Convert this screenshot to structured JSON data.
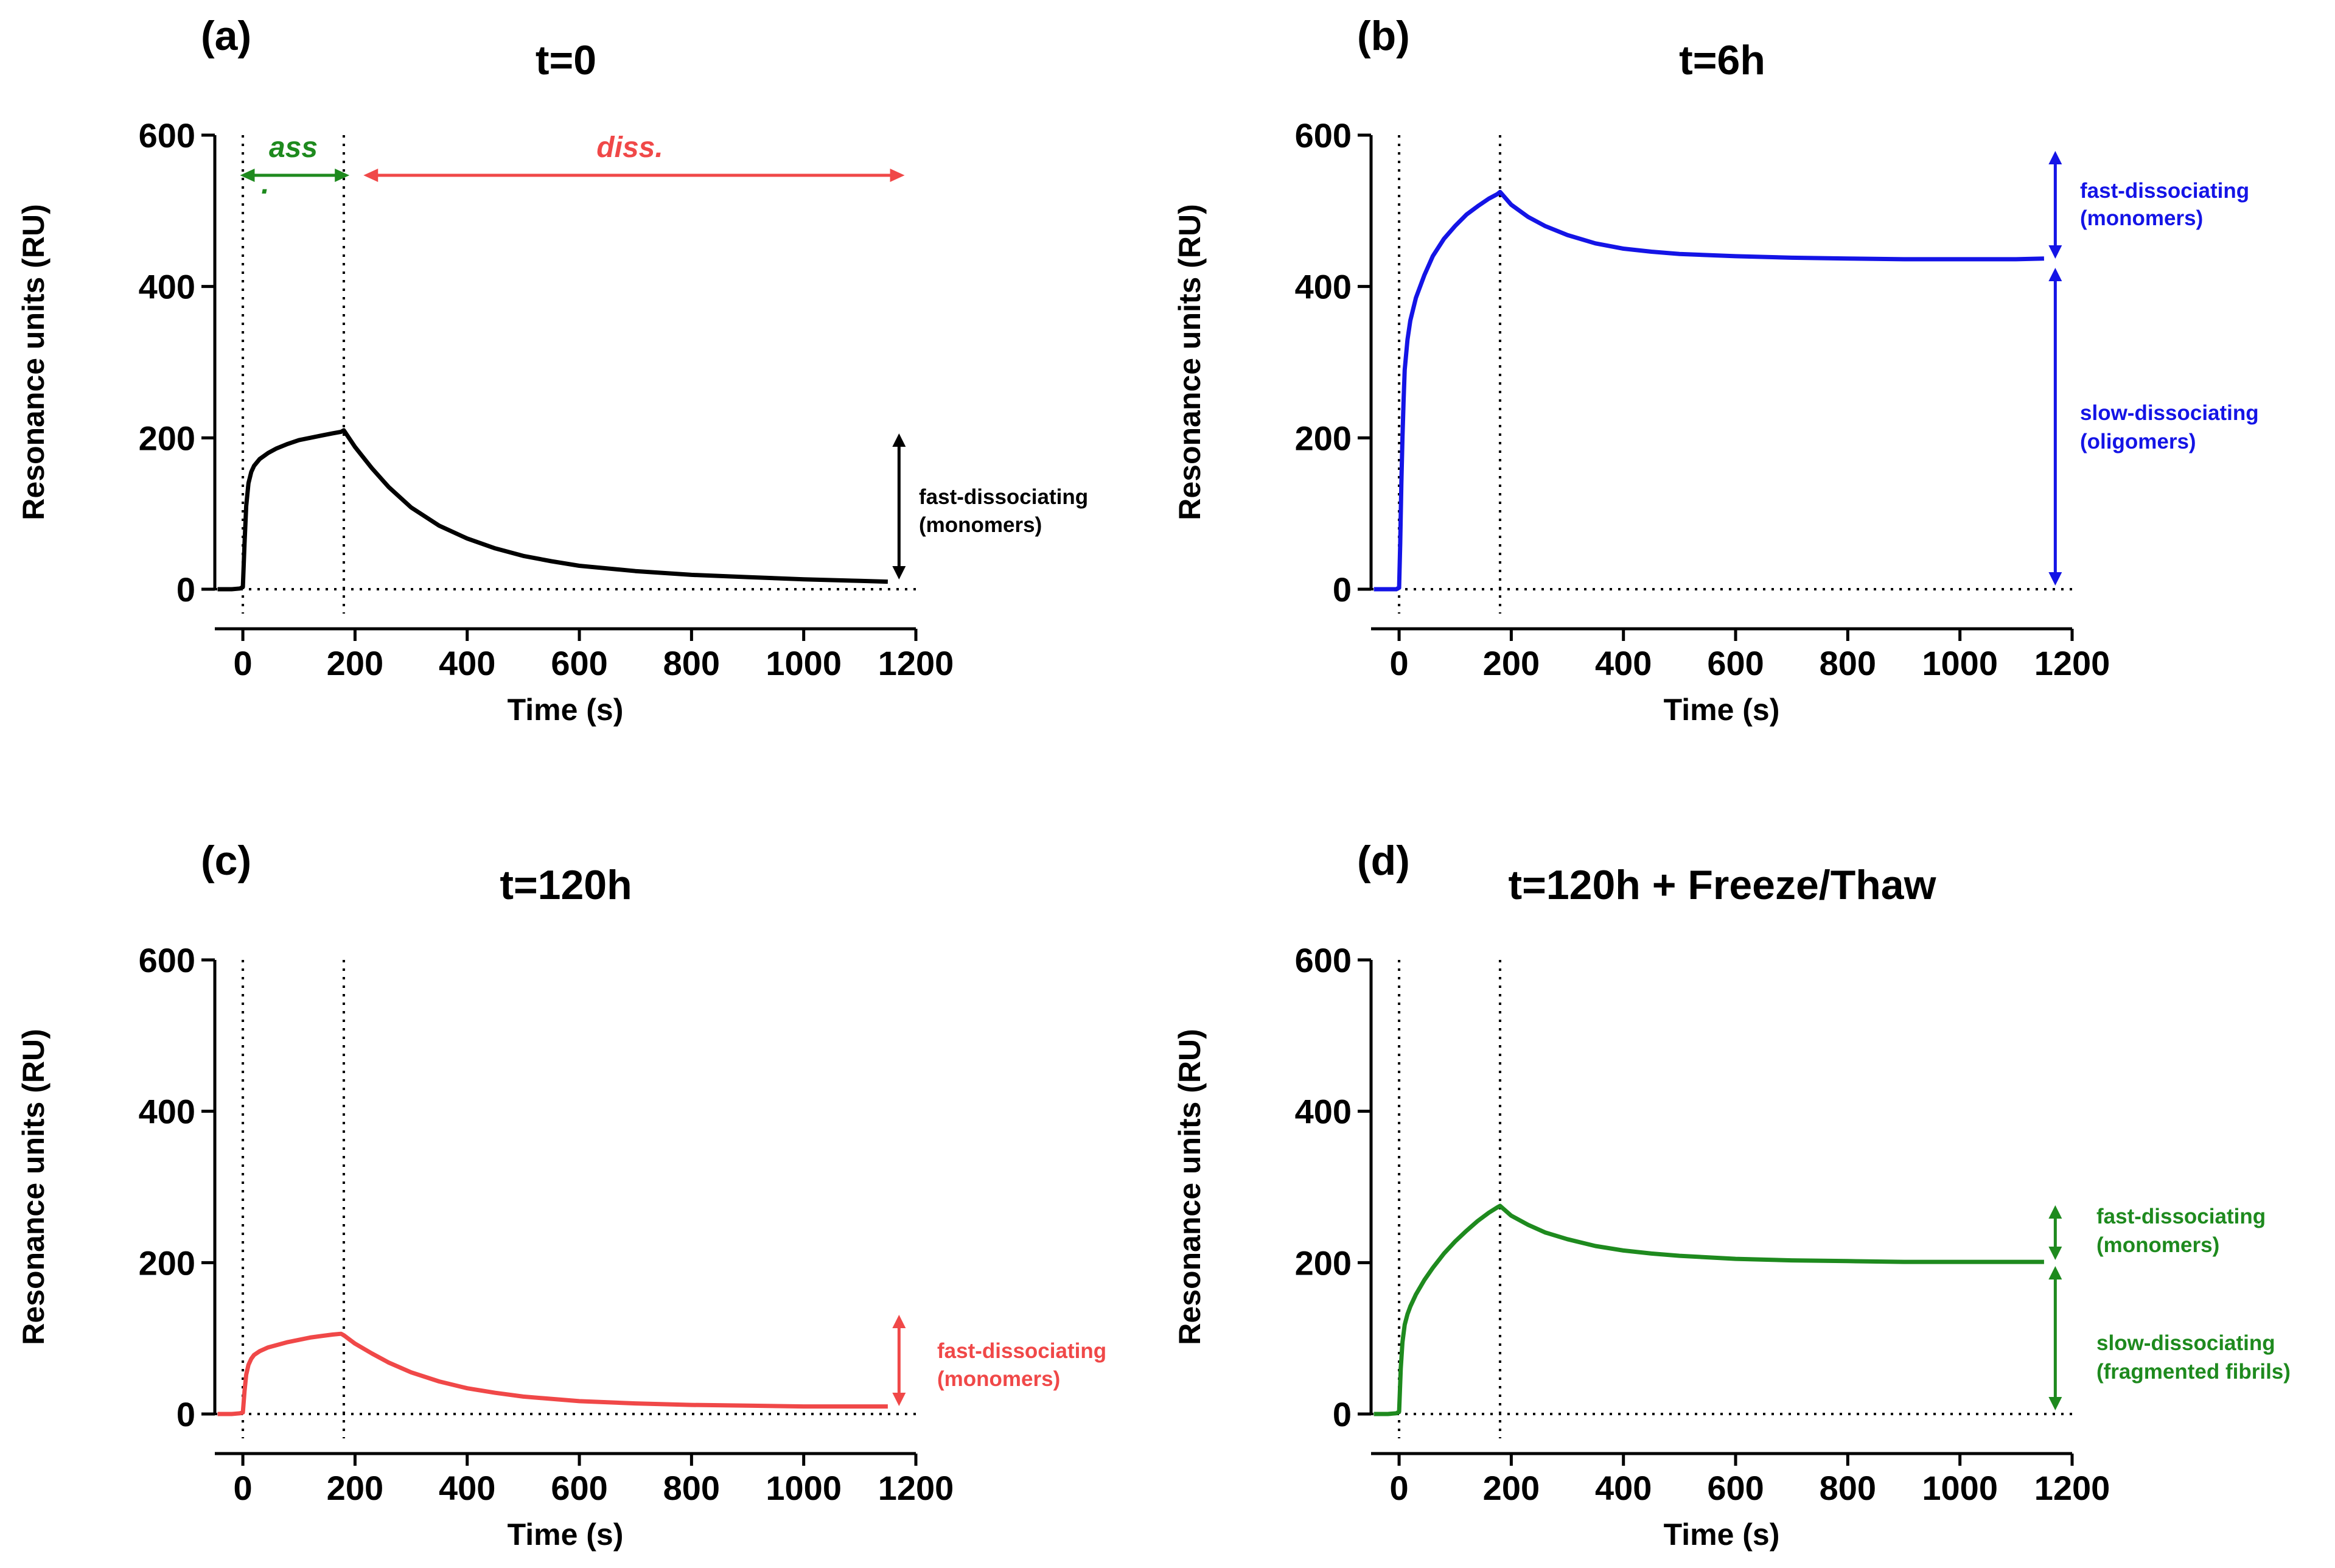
{
  "chart_data": [
    {
      "type": "line",
      "panel_label": "(a)",
      "title": "t=0",
      "xlabel": "Time (s)",
      "ylabel": "Resonance units (RU)",
      "xlim": [
        -50,
        1200
      ],
      "ylim": [
        0,
        600
      ],
      "xticks": [
        "0",
        "200",
        "400",
        "600",
        "800",
        "1000",
        "1200"
      ],
      "yticks": [
        "0",
        "200",
        "400",
        "600"
      ],
      "color": "#000000",
      "vlines": [
        0,
        180
      ],
      "hline": 0,
      "series": [
        {
          "name": "t=0",
          "x": [
            -45,
            -20,
            -5,
            0,
            3,
            6,
            10,
            15,
            20,
            30,
            45,
            60,
            80,
            100,
            120,
            140,
            160,
            175,
            180,
            200,
            230,
            260,
            300,
            350,
            400,
            450,
            500,
            550,
            600,
            700,
            800,
            900,
            1000,
            1100,
            1150
          ],
          "y": [
            0,
            0,
            1,
            3,
            60,
            110,
            140,
            155,
            163,
            172,
            180,
            186,
            192,
            197,
            200,
            203,
            206,
            208,
            210,
            188,
            160,
            135,
            108,
            84,
            67,
            54,
            44,
            37,
            31,
            24,
            19,
            16,
            13,
            11,
            10
          ]
        }
      ],
      "annotations": {
        "ass_label": "ass",
        "ass_dot": ".",
        "diss_label": "diss.",
        "fast_line1": "fast-dissociating",
        "fast_line2": "(monomers)"
      },
      "colors": {
        "ass": "#1e8a1e",
        "diss": "#f04848",
        "fast": "#000000"
      }
    },
    {
      "type": "line",
      "panel_label": "(b)",
      "title": "t=6h",
      "xlabel": "Time (s)",
      "ylabel": "Resonance units (RU)",
      "xlim": [
        -50,
        1200
      ],
      "ylim": [
        0,
        600
      ],
      "xticks": [
        "0",
        "200",
        "400",
        "600",
        "800",
        "1000",
        "1200"
      ],
      "yticks": [
        "0",
        "200",
        "400",
        "600"
      ],
      "color": "#1414e6",
      "vlines": [
        0,
        180
      ],
      "hline": 0,
      "series": [
        {
          "name": "t=6h",
          "x": [
            -45,
            -20,
            -5,
            0,
            2,
            4,
            6,
            8,
            10,
            15,
            20,
            30,
            45,
            60,
            80,
            100,
            120,
            140,
            160,
            175,
            180,
            200,
            230,
            260,
            300,
            350,
            400,
            450,
            500,
            600,
            700,
            800,
            900,
            1000,
            1100,
            1150
          ],
          "y": [
            0,
            0,
            0,
            2,
            60,
            140,
            200,
            250,
            290,
            330,
            355,
            385,
            415,
            440,
            463,
            480,
            495,
            506,
            516,
            522,
            525,
            508,
            492,
            480,
            468,
            457,
            450,
            446,
            443,
            440,
            438,
            437,
            436,
            436,
            436,
            437
          ]
        }
      ],
      "annotations": {
        "fast_line1": "fast-dissociating",
        "fast_line2": "(monomers)",
        "slow_line1": "slow-dissociating",
        "slow_line2": "(oligomers)"
      },
      "colors": {
        "annot": "#1414e6"
      }
    },
    {
      "type": "line",
      "panel_label": "(c)",
      "title": "t=120h",
      "xlabel": "Time (s)",
      "ylabel": "Resonance units (RU)",
      "xlim": [
        -50,
        1200
      ],
      "ylim": [
        0,
        600
      ],
      "xticks": [
        "0",
        "200",
        "400",
        "600",
        "800",
        "1000",
        "1200"
      ],
      "yticks": [
        "0",
        "200",
        "400",
        "600"
      ],
      "color": "#f04848",
      "vlines": [
        0,
        180
      ],
      "hline": 0,
      "series": [
        {
          "name": "t=120h",
          "x": [
            -45,
            -20,
            -5,
            0,
            3,
            6,
            10,
            15,
            20,
            30,
            45,
            60,
            80,
            100,
            120,
            140,
            160,
            175,
            180,
            200,
            230,
            260,
            300,
            350,
            400,
            450,
            500,
            600,
            700,
            800,
            900,
            1000,
            1100,
            1150
          ],
          "y": [
            0,
            0,
            1,
            2,
            30,
            52,
            65,
            73,
            78,
            83,
            88,
            91,
            95,
            98,
            101,
            103,
            105,
            106,
            104,
            93,
            80,
            68,
            55,
            43,
            34,
            28,
            23,
            17,
            14,
            12,
            11,
            10,
            10,
            10
          ]
        }
      ],
      "annotations": {
        "fast_line1": "fast-dissociating",
        "fast_line2": "(monomers)"
      },
      "colors": {
        "annot": "#f04848"
      }
    },
    {
      "type": "line",
      "panel_label": "(d)",
      "title": "t=120h + Freeze/Thaw",
      "xlabel": "Time (s)",
      "ylabel": "Resonance units (RU)",
      "xlim": [
        -50,
        1200
      ],
      "ylim": [
        0,
        600
      ],
      "xticks": [
        "0",
        "200",
        "400",
        "600",
        "800",
        "1000",
        "1200"
      ],
      "yticks": [
        "0",
        "200",
        "400",
        "600"
      ],
      "color": "#1e8a1e",
      "vlines": [
        0,
        180
      ],
      "hline": 0,
      "series": [
        {
          "name": "t=120h + Freeze/Thaw",
          "x": [
            -45,
            -20,
            -5,
            0,
            3,
            6,
            10,
            15,
            20,
            30,
            45,
            60,
            80,
            100,
            120,
            140,
            160,
            175,
            180,
            200,
            230,
            260,
            300,
            350,
            400,
            450,
            500,
            600,
            700,
            800,
            900,
            1000,
            1100,
            1150
          ],
          "y": [
            0,
            0,
            1,
            3,
            60,
            95,
            118,
            132,
            142,
            158,
            177,
            193,
            212,
            228,
            242,
            255,
            266,
            273,
            275,
            262,
            250,
            240,
            231,
            222,
            216,
            212,
            209,
            205,
            203,
            202,
            201,
            201,
            201,
            201
          ]
        }
      ],
      "annotations": {
        "fast_line1": "fast-dissociating",
        "fast_line2": "(monomers)",
        "slow_line1": "slow-dissociating",
        "slow_line2": "(fragmented fibrils)"
      },
      "colors": {
        "annot": "#1e8a1e"
      }
    }
  ]
}
